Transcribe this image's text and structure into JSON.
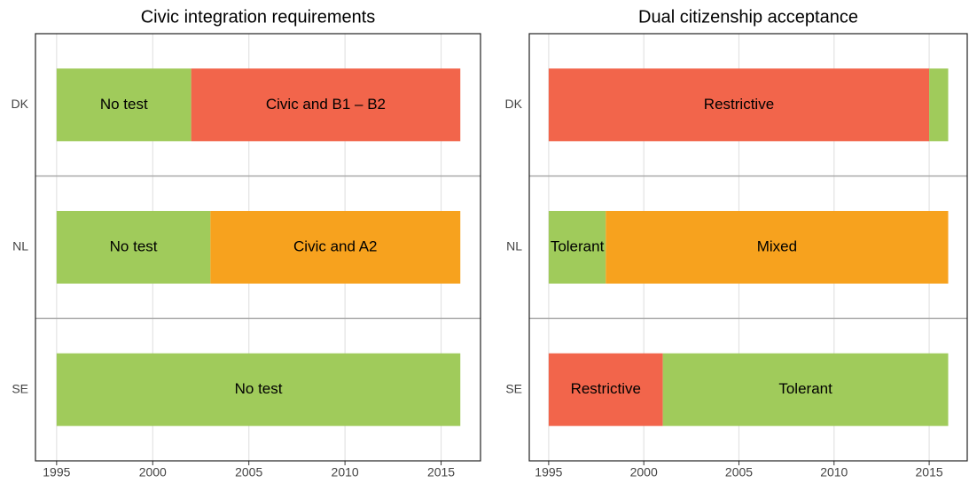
{
  "chart_data": [
    {
      "type": "timeline",
      "title": "Civic integration requirements",
      "categories": [
        "DK",
        "NL",
        "SE"
      ],
      "segments": [
        [
          {
            "label": "No test",
            "start": 1995,
            "end": 2002,
            "color": "#a0cb5b"
          },
          {
            "label": "Civic and B1 – B2",
            "start": 2002,
            "end": 2016,
            "color": "#f2654b"
          }
        ],
        [
          {
            "label": "No test",
            "start": 1995,
            "end": 2003,
            "color": "#a0cb5b"
          },
          {
            "label": "Civic and A2",
            "start": 2003,
            "end": 2016,
            "color": "#f7a21e"
          }
        ],
        [
          {
            "label": "No test",
            "start": 1995,
            "end": 2016,
            "color": "#a0cb5b"
          }
        ]
      ],
      "xlim": [
        1993.9,
        2017.05
      ],
      "xticks": [
        1995,
        2000,
        2005,
        2010,
        2015
      ],
      "grid": true
    },
    {
      "type": "timeline",
      "title": "Dual citizenship acceptance",
      "categories": [
        "DK",
        "NL",
        "SE"
      ],
      "segments": [
        [
          {
            "label": "Restrictive",
            "start": 1995,
            "end": 2015,
            "color": "#f2654b"
          },
          {
            "start": 2015,
            "end": 2016,
            "color": "#a0cb5b"
          }
        ],
        [
          {
            "label": "Tolerant",
            "start": 1995,
            "end": 1998,
            "color": "#a0cb5b"
          },
          {
            "label": "Mixed",
            "start": 1998,
            "end": 2016,
            "color": "#f7a21e"
          }
        ],
        [
          {
            "label": "Restrictive",
            "start": 1995,
            "end": 2001,
            "color": "#f2654b"
          },
          {
            "label": "Tolerant",
            "start": 2001,
            "end": 2016,
            "color": "#a0cb5b"
          }
        ]
      ],
      "xlim": [
        1993.98,
        2017.0
      ],
      "xticks": [
        1995,
        2000,
        2005,
        2010,
        2015
      ],
      "grid": true
    }
  ]
}
